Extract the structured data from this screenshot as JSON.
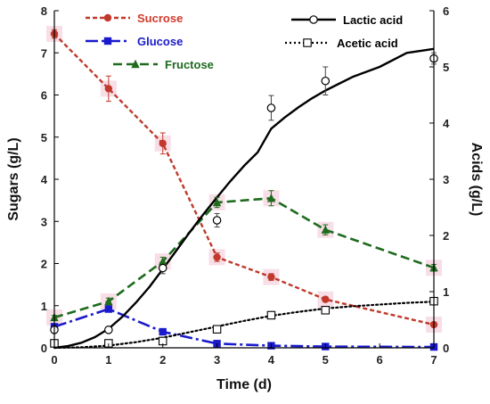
{
  "chart_data": {
    "type": "line",
    "xlabel": "Time (d)",
    "ylabel_left": "Sugars (g/L)",
    "ylabel_right": "Acids (g/L)",
    "xlim": [
      0,
      7
    ],
    "ylim_left": [
      0,
      8
    ],
    "ylim_right": [
      0,
      6
    ],
    "x_ticks": [
      0,
      1,
      2,
      3,
      4,
      5,
      6,
      7
    ],
    "y_left_ticks": [
      0,
      1,
      2,
      3,
      4,
      5,
      6,
      7,
      8
    ],
    "y_right_ticks": [
      0,
      1,
      2,
      3,
      4,
      5,
      6
    ],
    "grid": false,
    "series": [
      {
        "name": "Sucrose",
        "axis": "left",
        "color": "#c0392b",
        "style": "dashed-dot",
        "marker": "circle-filled",
        "x": [
          0,
          1,
          2,
          3,
          4,
          5,
          7
        ],
        "y": [
          7.45,
          6.15,
          4.85,
          2.15,
          1.68,
          1.15,
          0.55
        ],
        "err": [
          0.1,
          0.3,
          0.25,
          0.1,
          0.08,
          0.06,
          0.05
        ]
      },
      {
        "name": "Glucose",
        "axis": "left",
        "color": "#1a1acc",
        "style": "long-dash-dot",
        "marker": "square-filled",
        "x": [
          0,
          1,
          2,
          3,
          4,
          5,
          7
        ],
        "y": [
          0.5,
          0.92,
          0.38,
          0.1,
          0.05,
          0.03,
          0.02
        ],
        "err": [
          0.05,
          0.06,
          0.05,
          0.02,
          0.02,
          0.01,
          0.01
        ]
      },
      {
        "name": "Fructose",
        "axis": "left",
        "color": "#1e6b1e",
        "style": "dashed",
        "marker": "triangle-filled",
        "x": [
          0,
          1,
          2,
          3,
          4,
          5,
          7
        ],
        "y": [
          0.72,
          1.1,
          2.05,
          3.45,
          3.55,
          2.8,
          1.9
        ],
        "err": [
          0.05,
          0.08,
          0.1,
          0.12,
          0.18,
          0.12,
          0.08
        ]
      },
      {
        "name": "Lactic acid",
        "axis": "right",
        "color": "#000000",
        "style": "solid",
        "marker": "circle-open",
        "x": [
          0,
          1,
          2,
          3,
          4,
          5,
          7
        ],
        "y": [
          0.32,
          0.32,
          1.42,
          2.27,
          4.27,
          4.75,
          5.15
        ],
        "err": [
          0.05,
          0.05,
          0.1,
          0.12,
          0.22,
          0.25,
          0.1
        ],
        "curve_x": [
          0,
          0.25,
          0.5,
          0.75,
          1,
          1.25,
          1.5,
          1.75,
          2,
          2.25,
          2.5,
          2.75,
          3,
          3.25,
          3.5,
          3.75,
          4,
          4.25,
          4.5,
          4.75,
          5,
          5.5,
          6,
          6.5,
          7
        ],
        "curve_y": [
          0,
          0.03,
          0.09,
          0.19,
          0.34,
          0.55,
          0.8,
          1.08,
          1.4,
          1.73,
          2.06,
          2.38,
          2.68,
          2.97,
          3.24,
          3.48,
          3.9,
          4.1,
          4.28,
          4.44,
          4.58,
          4.82,
          5.0,
          5.25,
          5.32
        ]
      },
      {
        "name": "Acetic acid",
        "axis": "right",
        "color": "#000000",
        "style": "dotted",
        "marker": "square-open",
        "x": [
          0,
          1,
          2,
          3,
          4,
          5,
          7
        ],
        "y": [
          0.08,
          0.08,
          0.12,
          0.33,
          0.58,
          0.67,
          0.83
        ],
        "err": [
          0.01,
          0.01,
          0.02,
          0.02,
          0.03,
          0.04,
          0.04
        ],
        "curve_x": [
          0,
          0.5,
          1,
          1.5,
          2,
          2.5,
          3,
          3.5,
          4,
          4.5,
          5,
          5.5,
          6,
          6.5,
          7
        ],
        "curve_y": [
          0,
          0.01,
          0.04,
          0.1,
          0.18,
          0.28,
          0.38,
          0.48,
          0.57,
          0.64,
          0.7,
          0.74,
          0.77,
          0.8,
          0.82
        ]
      }
    ]
  }
}
